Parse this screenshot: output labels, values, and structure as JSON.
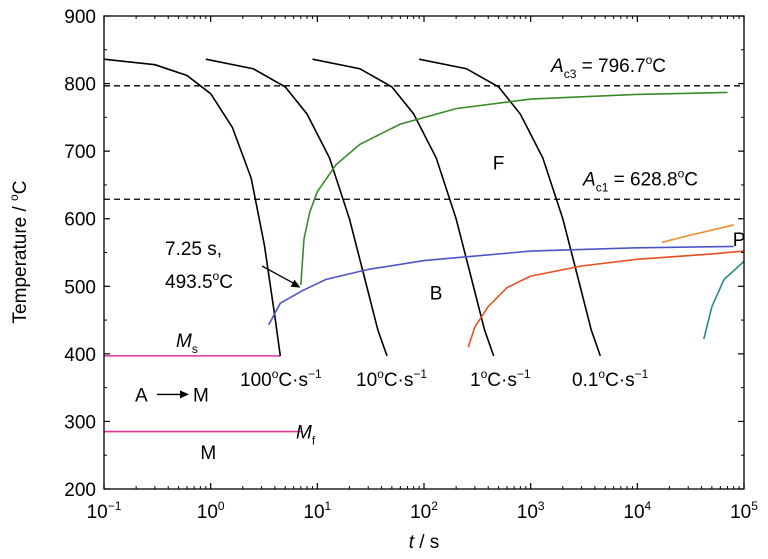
{
  "chart_data": {
    "type": "line",
    "title": "",
    "xlabel": {
      "symbol": "t",
      "unit": " / s"
    },
    "ylabel": "Temperature / °C",
    "ylabel_parts": {
      "text": "Temperature / ",
      "sup": "o",
      "unit": "C"
    },
    "x_scale": "log",
    "xlim": [
      0.1,
      100000
    ],
    "ylim": [
      200,
      900
    ],
    "x_ticks": [
      {
        "base": "10",
        "exp": "−1",
        "value": 0.1
      },
      {
        "base": "10",
        "exp": "0",
        "value": 1
      },
      {
        "base": "10",
        "exp": "1",
        "value": 10
      },
      {
        "base": "10",
        "exp": "2",
        "value": 100
      },
      {
        "base": "10",
        "exp": "3",
        "value": 1000
      },
      {
        "base": "10",
        "exp": "4",
        "value": 10000
      },
      {
        "base": "10",
        "exp": "5",
        "value": 100000
      }
    ],
    "y_ticks": [
      200,
      300,
      400,
      500,
      600,
      700,
      800,
      900
    ],
    "grid": false,
    "colors": {
      "cooling": "#000000",
      "ferrite": "#3a8a2a",
      "bainite": "#4a55c8",
      "pearlite_start": "#e8501e",
      "pearlite_finish": "#f08a2a",
      "pearlite_teal": "#2a8a88",
      "martensite": "#e0339a",
      "dashed": "#000000"
    },
    "hlines": [
      {
        "label_main": "A",
        "label_sub": "c3",
        "label_value": " = 796.7",
        "label_sup": "o",
        "label_unit": "C",
        "y": 796.7
      },
      {
        "label_main": "A",
        "label_sub": "c1",
        "label_value": " = 628.8",
        "label_sup": "o",
        "label_unit": "C",
        "y": 628.8
      }
    ],
    "ms_line": {
      "label_main": "M",
      "label_sub": "s",
      "y": 397,
      "x_end": 4.5
    },
    "mf_line": {
      "label_main": "M",
      "label_sub": "f",
      "y": 285,
      "x_end": 7
    },
    "cooling_curves": [
      {
        "label": "100°C·s⁻¹",
        "label_parts": [
          "100",
          "o",
          "C·s",
          "−1"
        ],
        "x": [
          0.1,
          0.3,
          0.6,
          1.0,
          1.6,
          2.4,
          3.2,
          4.0,
          4.5
        ],
        "y": [
          836,
          828,
          812,
          785,
          735,
          660,
          560,
          455,
          397
        ]
      },
      {
        "label": "10°C·s⁻¹",
        "label_parts": [
          "10",
          "o",
          "C·s",
          "−1"
        ],
        "x": [
          0.9,
          2.5,
          5,
          8,
          13,
          20,
          28,
          37,
          45
        ],
        "y": [
          836,
          822,
          795,
          755,
          690,
          600,
          510,
          435,
          397
        ]
      },
      {
        "label": "1°C·s⁻¹",
        "label_parts": [
          "1",
          "o",
          "C·s",
          "−1"
        ],
        "x": [
          9,
          25,
          50,
          80,
          130,
          200,
          280,
          370,
          450
        ],
        "y": [
          836,
          822,
          795,
          755,
          690,
          600,
          510,
          435,
          397
        ]
      },
      {
        "label": "0.1°C·s⁻¹",
        "label_parts": [
          "0.1",
          "o",
          "C·s",
          "−1"
        ],
        "x": [
          90,
          250,
          500,
          800,
          1300,
          2000,
          2800,
          3700,
          4500
        ],
        "y": [
          836,
          822,
          795,
          755,
          690,
          600,
          510,
          435,
          397
        ]
      }
    ],
    "series": [
      {
        "name": "F",
        "x": [
          7.0,
          7.5,
          8.5,
          10,
          15,
          25,
          60,
          200,
          1000,
          10000,
          70000
        ],
        "y": [
          502,
          570,
          610,
          640,
          680,
          710,
          740,
          763,
          777,
          784,
          787
        ]
      },
      {
        "name": "B",
        "x": [
          3.5,
          4.5,
          7.25,
          12,
          30,
          100,
          1000,
          10000,
          80000
        ],
        "y": [
          443,
          475,
          493.5,
          510,
          525,
          538,
          552,
          557,
          559
        ]
      },
      {
        "name": "P",
        "x": [
          260,
          300,
          400,
          600,
          1000,
          3000,
          10000,
          50000,
          100000
        ],
        "y": [
          410,
          440,
          470,
          498,
          515,
          530,
          540,
          548,
          552
        ]
      },
      {
        "name": "",
        "x": [
          17000,
          30000,
          60000,
          80000
        ],
        "y": [
          565,
          575,
          586,
          591
        ]
      },
      {
        "name": "",
        "x": [
          42000,
          50000,
          65000,
          100000
        ],
        "y": [
          422,
          470,
          510,
          537
        ]
      }
    ],
    "region_labels": [
      {
        "text": "F",
        "x": 500,
        "y": 683
      },
      {
        "text": "B",
        "x": 130,
        "y": 491
      },
      {
        "text": "P",
        "x": 90000,
        "y": 570
      },
      {
        "text": "M",
        "x": 0.95,
        "y": 255
      }
    ],
    "transform_label": {
      "left": "A",
      "right": "M",
      "y": 340
    },
    "annotation": {
      "line1": "7.25 s,",
      "line2_value": "493.5",
      "line2_sup": "o",
      "line2_unit": "C",
      "target_x": 7.25,
      "target_y": 493.5
    }
  }
}
